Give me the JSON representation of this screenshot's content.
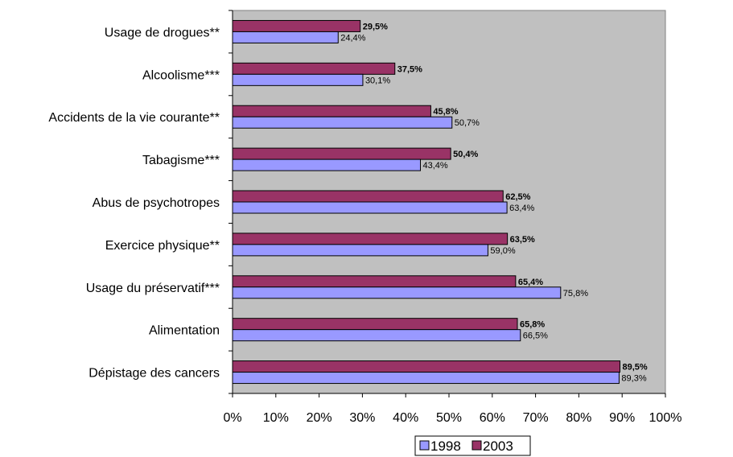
{
  "chart_data": {
    "type": "bar",
    "orientation": "horizontal",
    "categories": [
      "Usage de drogues**",
      "Alcoolisme***",
      "Accidents de la vie courante**",
      "Tabagisme***",
      "Abus de psychotropes",
      "Exercice physique**",
      "Usage du préservatif***",
      "Alimentation",
      "Dépistage des cancers"
    ],
    "series": [
      {
        "name": "1998",
        "color": "#9999ff",
        "values": [
          24.4,
          30.1,
          50.7,
          43.4,
          63.4,
          59.0,
          75.8,
          66.5,
          89.3
        ],
        "labels": [
          "24,4%",
          "30,1%",
          "50,7%",
          "43,4%",
          "63,4%",
          "59,0%",
          "75,8%",
          "66,5%",
          "89,3%"
        ]
      },
      {
        "name": "2003",
        "color": "#993366",
        "values": [
          29.5,
          37.5,
          45.8,
          50.4,
          62.5,
          63.5,
          65.4,
          65.8,
          89.5
        ],
        "labels": [
          "29,5%",
          "37,5%",
          "45,8%",
          "50,4%",
          "62,5%",
          "63,5%",
          "65,4%",
          "65,8%",
          "89,5%"
        ]
      }
    ],
    "xlim": [
      0,
      100
    ],
    "x_ticks": [
      "0%",
      "10%",
      "20%",
      "30%",
      "40%",
      "50%",
      "60%",
      "70%",
      "80%",
      "90%",
      "100%"
    ],
    "plot_background": "#c0c0c0",
    "grid": false,
    "legend_position": "bottom-center",
    "title": "",
    "xlabel": "",
    "ylabel": ""
  }
}
